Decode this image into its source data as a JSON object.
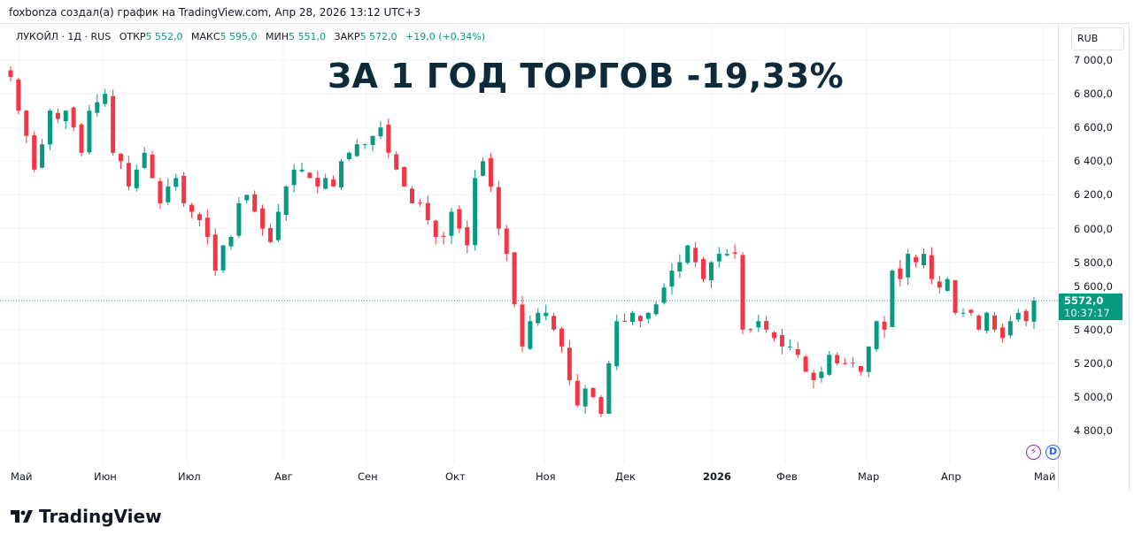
{
  "credit": "foxbonza создал(а) график на TradingView.com, Апр 28, 2026 13:12 UTC+3",
  "legend": {
    "symbol": "ЛУКОЙЛ · 1Д · RUS",
    "open_label": "ОТКР",
    "open": "5 552,0",
    "high_label": "МАКС",
    "high": "5 595,0",
    "low_label": "МИН",
    "low": "5 551,0",
    "close_label": "ЗАКР",
    "close": "5 572,0",
    "change": "+19,0 (+0,34%)"
  },
  "headline": "ЗА 1 ГОД ТОРГОВ -19,33%",
  "currency": "RUB",
  "price_tag": {
    "price": "5572,0",
    "countdown": "10:37:17"
  },
  "brand": "TradingView",
  "colors": {
    "up": "#089981",
    "down": "#f23645",
    "headline": "#0d2a3a"
  },
  "chart_data": {
    "type": "candlestick",
    "title": "ЛУКОЙЛ · 1Д · RUS",
    "ylabel": "RUB",
    "ylim": [
      4700,
      7050
    ],
    "y_ticks": [
      "7 000,0",
      "6 800,0",
      "6 600,0",
      "6 400,0",
      "6 200,0",
      "6 000,0",
      "5 800,0",
      "5 600,0",
      "5 400,0",
      "5 200,0",
      "5 000,0",
      "4 800,0"
    ],
    "y_tick_values": [
      7000,
      6800,
      6600,
      6400,
      6200,
      6000,
      5800,
      5600,
      5400,
      5200,
      5000,
      4800
    ],
    "x_ticks": [
      "Май",
      "Июн",
      "Июл",
      "Авг",
      "Сен",
      "Окт",
      "Ноя",
      "Дек",
      "2026",
      "Фев",
      "Мар",
      "Апр",
      "Май"
    ],
    "last_price": 5572,
    "grid": true,
    "closes_approx": [
      6900,
      6700,
      6550,
      6350,
      6500,
      6700,
      6650,
      6700,
      6600,
      6450,
      6700,
      6750,
      6800,
      6450,
      6400,
      6250,
      6350,
      6450,
      6300,
      6150,
      6250,
      6300,
      6150,
      6100,
      6050,
      5950,
      5750,
      5900,
      5950,
      6150,
      6200,
      6100,
      6000,
      5920,
      6100,
      6250,
      6350,
      6350,
      6300,
      6250,
      6300,
      6250,
      6400,
      6450,
      6500,
      6500,
      6550,
      6600,
      6450,
      6350,
      6250,
      6150,
      6150,
      6050,
      5950,
      5950,
      6100,
      6000,
      5900,
      6300,
      6400,
      6250,
      6000,
      5850,
      5550,
      5300,
      5450,
      5500,
      5500,
      5400,
      5300,
      5100,
      4950,
      5050,
      5000,
      4900,
      5200,
      5450,
      5450,
      5500,
      5450,
      5500,
      5550,
      5650,
      5750,
      5800,
      5900,
      5800,
      5700,
      5800,
      5850,
      5850,
      5850,
      5400,
      5400,
      5450,
      5400,
      5350,
      5300,
      5300,
      5250,
      5150,
      5100,
      5150,
      5250,
      5200,
      5200,
      5200,
      5150,
      5300,
      5450,
      5400,
      5750,
      5700,
      5850,
      5800,
      5850,
      5700,
      5650,
      5700,
      5500,
      5500,
      5500,
      5400,
      5500,
      5400,
      5350,
      5450,
      5500,
      5450,
      5572
    ]
  }
}
